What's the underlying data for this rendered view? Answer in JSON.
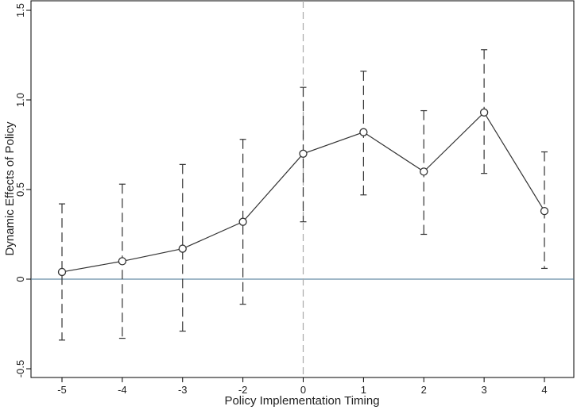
{
  "chart_data": {
    "type": "line",
    "xlabel": "Policy Implementation Timing",
    "ylabel": "Dynamic Effects of Policy",
    "categories": [
      "-5",
      "-4",
      "-3",
      "-2",
      "0",
      "1",
      "2",
      "3",
      "4"
    ],
    "series": [
      {
        "values": [
          0.04,
          0.1,
          0.17,
          0.32,
          0.7,
          0.82,
          0.6,
          0.93,
          0.38
        ],
        "ci_lower": [
          -0.34,
          -0.33,
          -0.29,
          -0.14,
          0.32,
          0.47,
          0.25,
          0.59,
          0.06
        ],
        "ci_upper": [
          0.42,
          0.53,
          0.64,
          0.78,
          1.07,
          1.16,
          0.94,
          1.28,
          0.71
        ]
      }
    ],
    "yticks": [
      "-0.5",
      "0",
      "0.5",
      "1.0",
      "1.5"
    ],
    "ylim": [
      -0.55,
      1.55
    ],
    "reference_line_y": 0,
    "reference_line_x_category": "0",
    "grid": false,
    "colors": {
      "series": "#333333",
      "error_bar": "#333333",
      "zero_line": "#3f6f8f",
      "vertical_ref": "#aaaaaa",
      "axis": "#000000"
    }
  }
}
